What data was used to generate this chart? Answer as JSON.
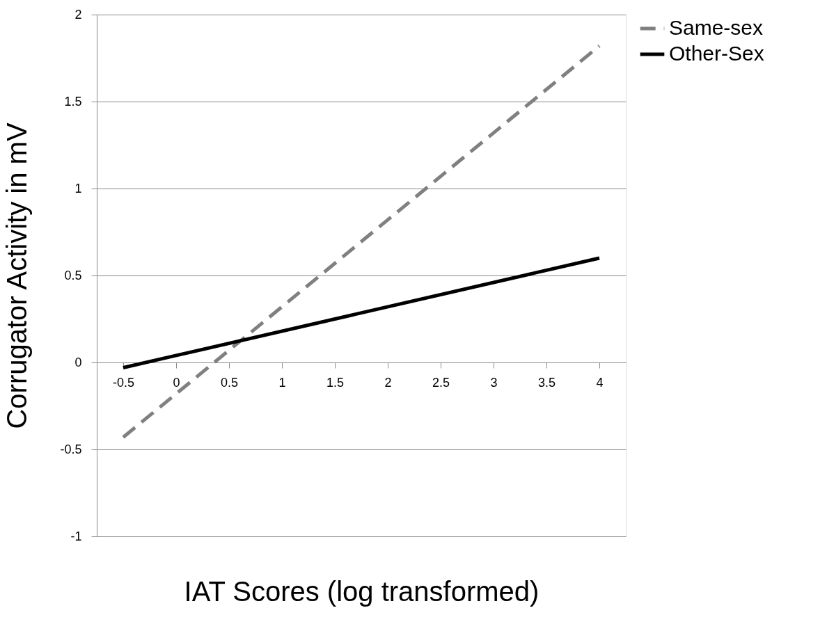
{
  "chart_data": {
    "type": "line",
    "xlabel": "IAT Scores (log transformed)",
    "ylabel": "Corrugator Activity in mV",
    "x": [
      -0.5,
      4
    ],
    "series": [
      {
        "name": "Same-sex",
        "color": "#808080",
        "values": [
          -0.43,
          1.82
        ],
        "line_style": "dashed"
      },
      {
        "name": "Other-Sex",
        "color": "#000000",
        "values": [
          -0.03,
          0.6
        ],
        "line_style": "solid"
      }
    ],
    "xlim": [
      -0.75,
      4.25
    ],
    "xticks": [
      -0.5,
      0,
      0.5,
      1,
      1.5,
      2,
      2.5,
      3,
      3.5,
      4
    ],
    "ylim": [
      -1,
      2
    ],
    "yticks": [
      -1,
      -0.5,
      0,
      0.5,
      1,
      1.5,
      2
    ],
    "grid": "y",
    "legend": "right",
    "marker": "none"
  }
}
